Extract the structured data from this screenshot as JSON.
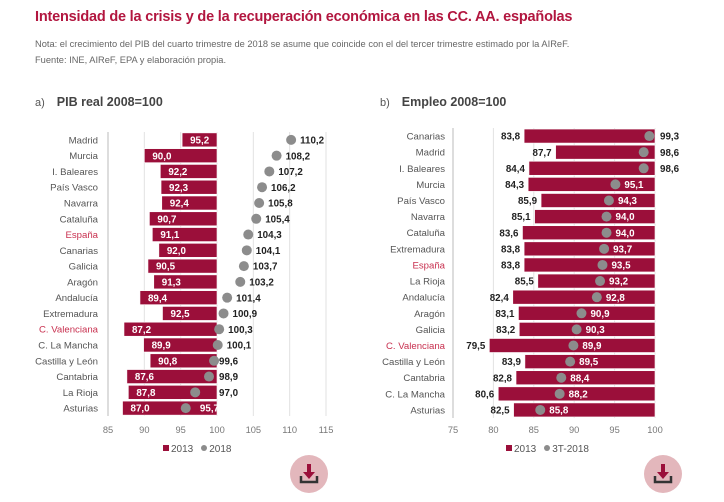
{
  "header": {
    "title": "Intensidad de la crisis y de la recuperación económica en las CC. AA. españolas",
    "note": "Nota: el crecimiento del PIB del cuarto trimestre de 2018 se asume que coincide con el del tercer trimestre estimado por la AIReF.",
    "source": "Fuente: INE, AIReF, EPA y elaboración propia."
  },
  "panels": {
    "a": {
      "letter": "a)",
      "name": "PIB real 2008=100",
      "legend": [
        "2013",
        "2018"
      ],
      "download_label": "download"
    },
    "b": {
      "letter": "b)",
      "name": "Empleo 2008=100",
      "legend": [
        "2013",
        "3T-2018"
      ],
      "download_label": "download"
    }
  },
  "colors": {
    "accent": "#b2163f",
    "bar": "#9b0f3a",
    "dot": "#8c8c8c",
    "highlight_label": "#c8304f",
    "download_bg": "#e3b7bc"
  },
  "chart_data": [
    {
      "type": "bar",
      "title": "PIB real 2008=100",
      "baseline": 100,
      "categories": [
        "Madrid",
        "Murcia",
        "I. Baleares",
        "País Vasco",
        "Navarra",
        "Cataluña",
        "España",
        "Canarias",
        "Galicia",
        "Aragón",
        "Andalucía",
        "Extremadura",
        "C. Valenciana",
        "C. La Mancha",
        "Castilla y León",
        "Cantabria",
        "La Rioja",
        "Asturias"
      ],
      "highlight": [
        "España",
        "C. Valenciana"
      ],
      "series": [
        {
          "name": "2013",
          "mark": "bar",
          "values": [
            95.2,
            90.0,
            92.2,
            92.3,
            92.4,
            90.7,
            91.1,
            92.0,
            90.5,
            91.3,
            89.4,
            92.5,
            87.2,
            89.9,
            90.8,
            87.6,
            87.8,
            87.0
          ]
        },
        {
          "name": "2018",
          "mark": "dot",
          "values": [
            110.2,
            108.2,
            107.2,
            106.2,
            105.8,
            105.4,
            104.3,
            104.1,
            103.7,
            103.2,
            101.4,
            100.9,
            100.3,
            100.1,
            99.6,
            98.9,
            97.0,
            95.7
          ]
        }
      ],
      "xlim": [
        85,
        115
      ],
      "xticks": [
        "85",
        "90",
        "95",
        "100",
        "105",
        "110",
        "115"
      ],
      "grid": true,
      "legend": "bottom"
    },
    {
      "type": "bar",
      "title": "Empleo 2008=100",
      "baseline": 100,
      "categories": [
        "Canarias",
        "Madrid",
        "I. Baleares",
        "Murcia",
        "País Vasco",
        "Navarra",
        "Cataluña",
        "Extremadura",
        "España",
        "La Rioja",
        "Andalucía",
        "Aragón",
        "Galicia",
        "C. Valenciana",
        "Castilla y León",
        "Cantabria",
        "C. La Mancha",
        "Asturias"
      ],
      "highlight": [
        "España",
        "C. Valenciana"
      ],
      "series": [
        {
          "name": "2013",
          "mark": "bar",
          "values": [
            83.8,
            87.7,
            84.4,
            84.3,
            85.9,
            85.1,
            83.6,
            83.8,
            83.8,
            85.5,
            82.4,
            83.1,
            83.2,
            79.5,
            83.9,
            82.8,
            80.6,
            82.5
          ]
        },
        {
          "name": "3T-2018",
          "mark": "dot",
          "values": [
            99.3,
            98.6,
            98.6,
            95.1,
            94.3,
            94.0,
            94.0,
            93.7,
            93.5,
            93.2,
            92.8,
            90.9,
            90.3,
            89.9,
            89.5,
            88.4,
            88.2,
            85.8
          ]
        }
      ],
      "xlim": [
        75,
        100
      ],
      "xticks": [
        "75",
        "80",
        "85",
        "90",
        "95",
        "100"
      ],
      "grid": true,
      "legend": "bottom"
    }
  ]
}
